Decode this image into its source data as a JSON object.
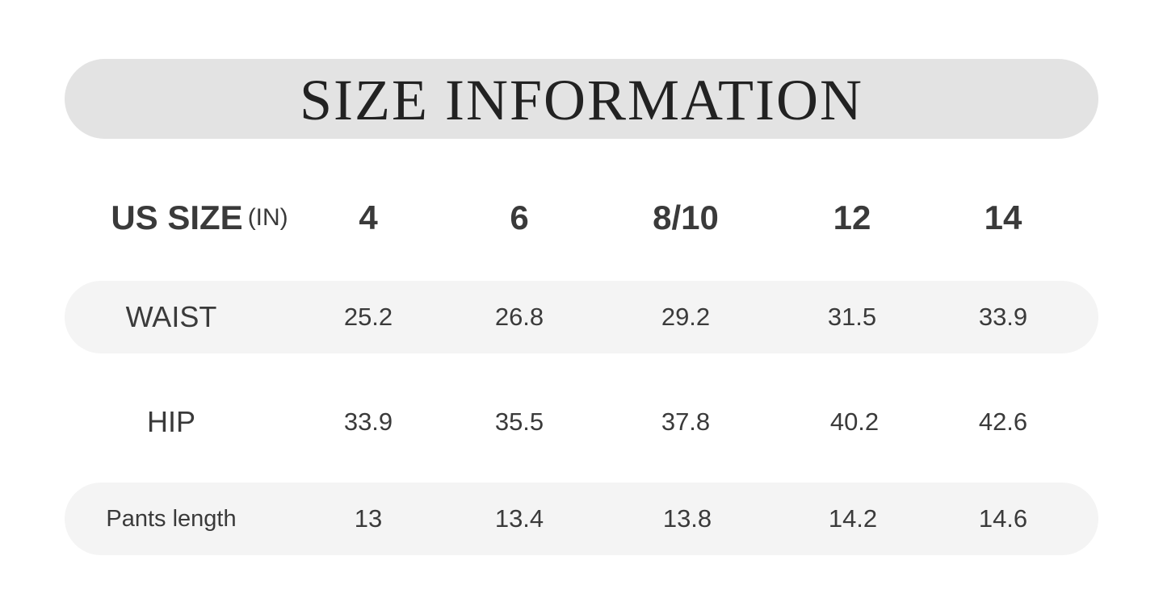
{
  "title": "SIZE INFORMATION",
  "header": {
    "label": "US SIZE",
    "unit": "(IN)",
    "sizes": [
      "4",
      "6",
      "8/10",
      "12",
      "14"
    ]
  },
  "rows": [
    {
      "label": "WAIST",
      "values": [
        "25.2",
        "26.8",
        "29.2",
        "31.5",
        "33.9"
      ]
    },
    {
      "label": "HIP",
      "values": [
        "33.9",
        "35.5",
        "37.8",
        "40.2",
        "42.6"
      ]
    },
    {
      "label": "Pants length",
      "values": [
        "13",
        "13.4",
        "13.8",
        "14.2",
        "14.6"
      ]
    }
  ],
  "colors": {
    "title_bar": "#e3e3e3",
    "row_shade": "#f4f4f4",
    "text": "#3a3a3a"
  }
}
